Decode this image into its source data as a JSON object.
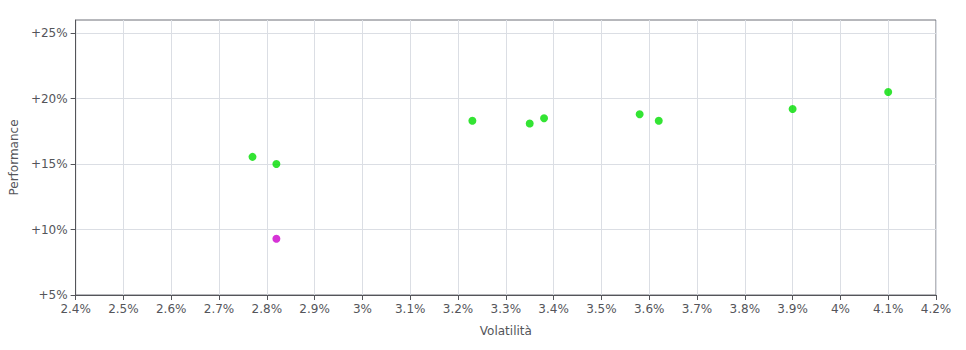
{
  "chart_data": {
    "type": "scatter",
    "xlabel": "Volatilità",
    "ylabel": "Performance",
    "xlim": [
      0.024,
      0.042
    ],
    "ylim": [
      0.05,
      0.26
    ],
    "xticks": [
      {
        "value": 0.024,
        "label": "2.4%"
      },
      {
        "value": 0.025,
        "label": "2.5%"
      },
      {
        "value": 0.026,
        "label": "2.6%"
      },
      {
        "value": 0.027,
        "label": "2.7%"
      },
      {
        "value": 0.028,
        "label": "2.8%"
      },
      {
        "value": 0.029,
        "label": "2.9%"
      },
      {
        "value": 0.03,
        "label": "3%"
      },
      {
        "value": 0.031,
        "label": "3.1%"
      },
      {
        "value": 0.032,
        "label": "3.2%"
      },
      {
        "value": 0.033,
        "label": "3.3%"
      },
      {
        "value": 0.034,
        "label": "3.4%"
      },
      {
        "value": 0.035,
        "label": "3.5%"
      },
      {
        "value": 0.036,
        "label": "3.6%"
      },
      {
        "value": 0.037,
        "label": "3.7%"
      },
      {
        "value": 0.038,
        "label": "3.8%"
      },
      {
        "value": 0.039,
        "label": "3.9%"
      },
      {
        "value": 0.04,
        "label": "4%"
      },
      {
        "value": 0.041,
        "label": "4.1%"
      },
      {
        "value": 0.042,
        "label": "4.2%"
      }
    ],
    "yticks": [
      {
        "value": 0.05,
        "label": "+5%"
      },
      {
        "value": 0.1,
        "label": "+10%"
      },
      {
        "value": 0.15,
        "label": "+15%"
      },
      {
        "value": 0.2,
        "label": "+20%"
      },
      {
        "value": 0.25,
        "label": "+25%"
      }
    ],
    "grid": true,
    "series": [
      {
        "color": "#00dd00",
        "x": [
          0.0277,
          0.0282,
          0.0323,
          0.0335,
          0.0338,
          0.0358,
          0.0362,
          0.039,
          0.041
        ],
        "values": [
          0.1555,
          0.15,
          0.183,
          0.181,
          0.185,
          0.188,
          0.183,
          0.192,
          0.205
        ]
      },
      {
        "color": "#cc00cc",
        "x": [
          0.0282
        ],
        "values": [
          0.093
        ]
      }
    ]
  }
}
